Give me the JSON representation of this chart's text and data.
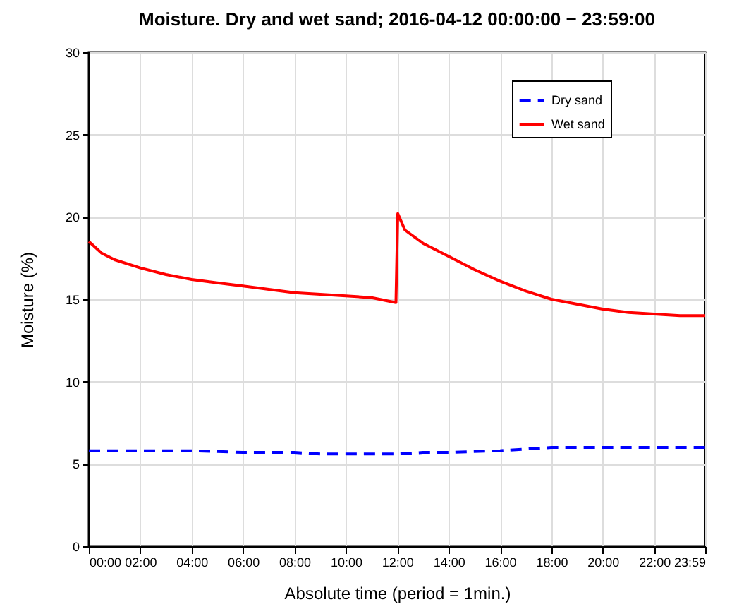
{
  "chart_data": {
    "type": "line",
    "title": "Moisture. Dry and wet sand; 2016-04-12 00:00:00 −  23:59:00",
    "xlabel": "Absolute time (period = 1min.)",
    "ylabel": "Moisture (%)",
    "xlim": [
      0,
      23.9833
    ],
    "ylim": [
      0,
      30
    ],
    "xticks": [
      {
        "value": 0,
        "label": "00:00"
      },
      {
        "value": 2,
        "label": "02:00"
      },
      {
        "value": 4,
        "label": "04:00"
      },
      {
        "value": 6,
        "label": "06:00"
      },
      {
        "value": 8,
        "label": "08:00"
      },
      {
        "value": 10,
        "label": "10:00"
      },
      {
        "value": 12,
        "label": "12:00"
      },
      {
        "value": 14,
        "label": "14:00"
      },
      {
        "value": 16,
        "label": "16:00"
      },
      {
        "value": 18,
        "label": "18:00"
      },
      {
        "value": 20,
        "label": "20:00"
      },
      {
        "value": 22,
        "label": "22:00"
      },
      {
        "value": 23.9833,
        "label": "23:59"
      }
    ],
    "yticks": [
      0,
      5,
      10,
      15,
      20,
      25,
      30
    ],
    "grid": true,
    "legend": "top right",
    "series": [
      {
        "name": "Dry sand",
        "color": "#0000ff",
        "line_style": "dashed",
        "x": [
          0,
          2,
          4,
          6,
          8,
          9,
          10,
          12,
          13,
          14,
          16,
          17,
          18,
          20,
          22,
          23.9833
        ],
        "values": [
          5.8,
          5.8,
          5.8,
          5.7,
          5.7,
          5.6,
          5.6,
          5.6,
          5.7,
          5.7,
          5.8,
          5.9,
          6.0,
          6.0,
          6.0,
          6.0
        ]
      },
      {
        "name": "Wet sand",
        "color": "#ff0000",
        "line_style": "solid",
        "x": [
          0,
          0.5,
          1,
          2,
          3,
          4,
          5,
          6,
          7,
          8,
          9,
          10,
          11,
          11.95,
          12.02,
          12.3,
          13,
          14,
          15,
          16,
          17,
          18,
          19,
          20,
          21,
          22,
          23,
          23.9833
        ],
        "values": [
          18.5,
          17.8,
          17.4,
          16.9,
          16.5,
          16.2,
          16.0,
          15.8,
          15.6,
          15.4,
          15.3,
          15.2,
          15.1,
          14.8,
          20.2,
          19.2,
          18.4,
          17.6,
          16.8,
          16.1,
          15.5,
          15.0,
          14.7,
          14.4,
          14.2,
          14.1,
          14.0,
          14.0
        ]
      }
    ]
  }
}
